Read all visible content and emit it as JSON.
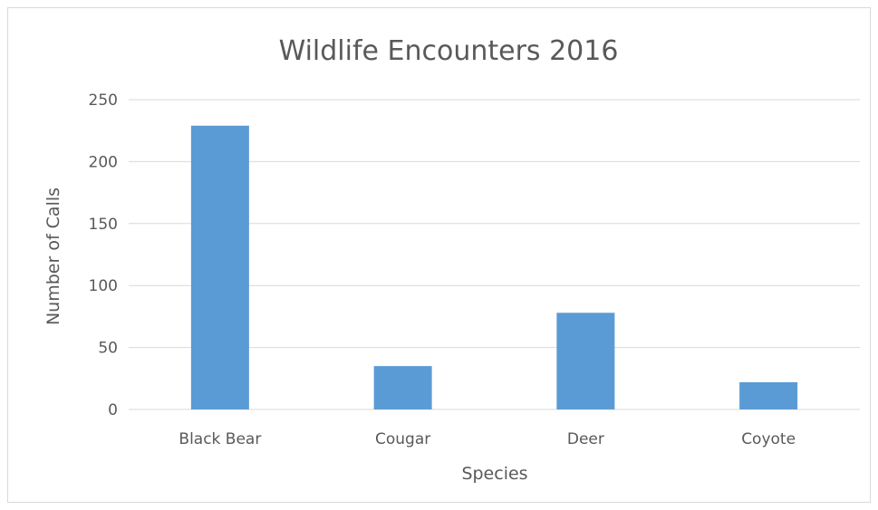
{
  "chart_data": {
    "type": "bar",
    "title": "Wildlife Encounters 2016",
    "xlabel": "Species",
    "ylabel": "Number of Calls",
    "categories": [
      "Black Bear",
      "Cougar",
      "Deer",
      "Coyote"
    ],
    "values": [
      229,
      35,
      78,
      22
    ],
    "ylim": [
      0,
      250
    ],
    "yticks": [
      0,
      50,
      100,
      150,
      200,
      250
    ],
    "grid": true,
    "legend": "none",
    "colors": {
      "bar": "#5b9bd5",
      "grid": "#d9d9d9",
      "text": "#595959"
    }
  }
}
